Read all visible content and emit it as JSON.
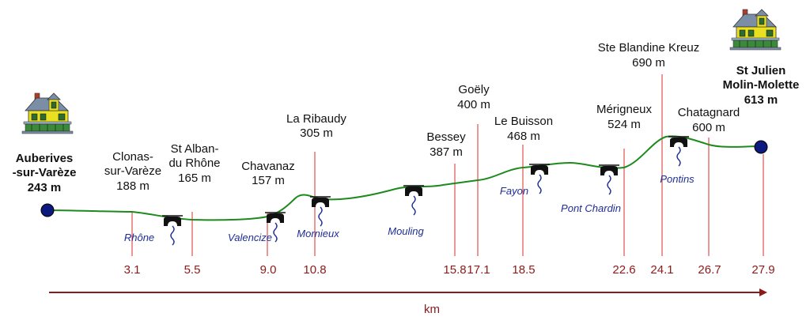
{
  "colors": {
    "profile_line": "#1d8a1d",
    "drop_line": "#e05050",
    "km_text": "#8b1a1a",
    "river_text": "#1e2d96",
    "endpoint": "#0c1a80",
    "axis_arrow": "#8b1a1a"
  },
  "axis": {
    "label": "km",
    "ticks": [
      "3.1",
      "5.5",
      "9.0",
      "10.8",
      "15.8",
      "17.1",
      "18.5",
      "22.6",
      "24.1",
      "26.7",
      "27.9"
    ]
  },
  "start": {
    "name_line1": "Auberives",
    "name_line2": "-sur-Varèze",
    "altitude": "243 m",
    "icon": "house-icon"
  },
  "end": {
    "name_line1": "St Julien",
    "name_line2": "Molin-Molette",
    "altitude": "613 m",
    "icon": "house-icon"
  },
  "places": [
    {
      "name_line1": "Clonas-",
      "name_line2": "sur-Varèze",
      "altitude": "188 m"
    },
    {
      "name_line1": "St Alban-",
      "name_line2": "du Rhône",
      "altitude": "165 m"
    },
    {
      "name_line1": "Chavanaz",
      "altitude": "157 m"
    },
    {
      "name_line1": "La Ribaudy",
      "altitude": "305 m"
    },
    {
      "name_line1": "Bessey",
      "altitude": "387 m"
    },
    {
      "name_line1": "Goëly",
      "altitude": "400 m"
    },
    {
      "name_line1": "Le Buisson",
      "altitude": "468 m"
    },
    {
      "name_line1": "Mérigneux",
      "altitude": "524 m"
    },
    {
      "name_line1": "Ste Blandine Kreuz",
      "altitude": "690 m"
    },
    {
      "name_line1": "Chatagnard",
      "altitude": "600 m"
    }
  ],
  "rivers": [
    "Rhône",
    "Valencize",
    "Mornieux",
    "Mouling",
    "Fayon",
    "Pont Chardin",
    "Pontins"
  ]
}
